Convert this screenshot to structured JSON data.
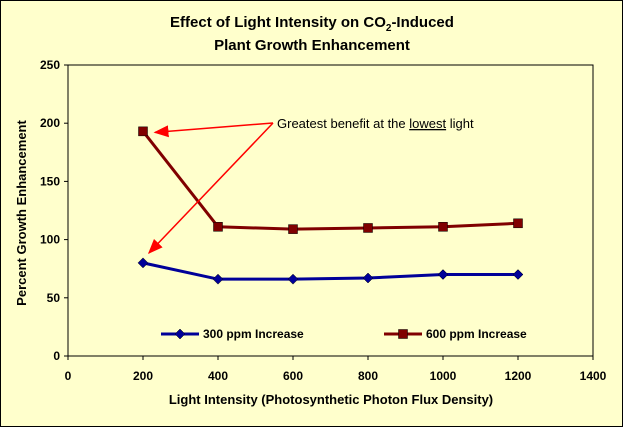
{
  "chart_data": {
    "type": "line",
    "title_line1": "Effect of Light Intensity on CO",
    "title_sub": "2",
    "title_line1_end": "-Induced",
    "title_line2": "Plant Growth Enhancement",
    "xlabel": "Light Intensity (Photosynthetic Photon Flux Density)",
    "ylabel": "Percent Growth Enhancement",
    "xlim": [
      0,
      1400
    ],
    "ylim": [
      0,
      250
    ],
    "xticks": [
      0,
      200,
      400,
      600,
      800,
      1000,
      1200,
      1400
    ],
    "yticks": [
      0,
      50,
      100,
      150,
      200,
      250
    ],
    "grid": false,
    "x": [
      200,
      400,
      600,
      800,
      1000,
      1200
    ],
    "series": [
      {
        "name": "300 ppm Increase",
        "values": [
          80,
          66,
          66,
          67,
          70,
          70
        ],
        "color": "#000099",
        "marker": "diamond"
      },
      {
        "name": "600 ppm Increase",
        "values": [
          193,
          111,
          109,
          110,
          111,
          114
        ],
        "color": "#800000",
        "marker": "square"
      }
    ],
    "annotation": {
      "prefix": "Greatest benefit at the ",
      "underlined": "lowest",
      "suffix": " light",
      "arrow_color": "#ff0000"
    }
  }
}
